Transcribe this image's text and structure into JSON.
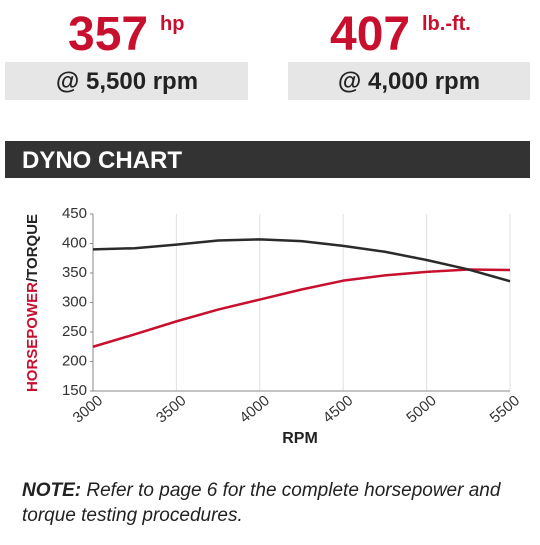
{
  "specs": [
    {
      "value": "357",
      "unit": "hp",
      "at": "@ 5,500 rpm"
    },
    {
      "value": "407",
      "unit": "lb.-ft.",
      "at": "@ 4,000 rpm"
    }
  ],
  "chart_data": {
    "type": "line",
    "title": "DYNO CHART",
    "xlabel": "RPM",
    "ylabel": [
      {
        "text": "HORSEPOWER",
        "color": "#c8102e"
      },
      {
        "text": "/TORQUE",
        "color": "#222222"
      }
    ],
    "x": [
      3000,
      3250,
      3500,
      3750,
      4000,
      4250,
      4500,
      4750,
      5000,
      5250,
      5500
    ],
    "series": [
      {
        "name": "HORSEPOWER",
        "color": "#c8102e",
        "values": [
          225,
          246,
          268,
          288,
          305,
          322,
          337,
          346,
          352,
          356,
          355
        ]
      },
      {
        "name": "TORQUE",
        "color": "#2b2b2b",
        "values": [
          390,
          392,
          398,
          405,
          407,
          404,
          396,
          386,
          372,
          356,
          336
        ]
      }
    ],
    "xlim": [
      3000,
      5500
    ],
    "xticks": [
      3000,
      3500,
      4000,
      4500,
      5000,
      5500
    ],
    "ylim": [
      150,
      450
    ],
    "yticks": [
      150,
      200,
      250,
      300,
      350,
      400,
      450
    ],
    "grid": "x"
  },
  "note": {
    "label": "NOTE:",
    "text": "Refer to page 6 for the complete horsepower and torque testing procedures."
  }
}
